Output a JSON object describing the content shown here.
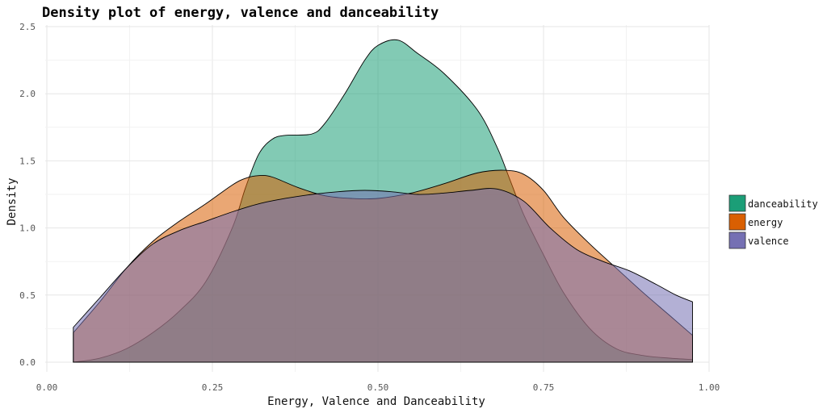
{
  "chart_data": {
    "type": "area",
    "title": "Density plot of energy, valence and danceability",
    "xlabel": "Energy, Valence and Danceability",
    "ylabel": "Density",
    "xlim": [
      0.0,
      1.0
    ],
    "ylim": [
      0.0,
      2.5
    ],
    "x_ticks": [
      "0.00",
      "0.25",
      "0.50",
      "0.75",
      "1.00"
    ],
    "y_ticks": [
      "0.0",
      "0.5",
      "1.0",
      "1.5",
      "2.0",
      "2.5"
    ],
    "grid": true,
    "legend_position": "right",
    "alpha": 0.55,
    "series": [
      {
        "name": "danceability",
        "color": "#1b9e77",
        "x": [
          0.04,
          0.08,
          0.12,
          0.16,
          0.2,
          0.24,
          0.28,
          0.3,
          0.32,
          0.34,
          0.36,
          0.4,
          0.42,
          0.45,
          0.48,
          0.5,
          0.53,
          0.56,
          0.6,
          0.65,
          0.68,
          0.7,
          0.72,
          0.75,
          0.78,
          0.82,
          0.86,
          0.9,
          0.94,
          0.975
        ],
        "values": [
          0.0,
          0.03,
          0.1,
          0.22,
          0.38,
          0.6,
          1.0,
          1.3,
          1.55,
          1.66,
          1.69,
          1.7,
          1.78,
          2.0,
          2.25,
          2.36,
          2.4,
          2.3,
          2.15,
          1.88,
          1.6,
          1.35,
          1.1,
          0.8,
          0.52,
          0.25,
          0.1,
          0.05,
          0.03,
          0.02
        ]
      },
      {
        "name": "energy",
        "color": "#d95f02",
        "x": [
          0.04,
          0.08,
          0.12,
          0.16,
          0.2,
          0.24,
          0.28,
          0.3,
          0.32,
          0.34,
          0.38,
          0.42,
          0.46,
          0.5,
          0.55,
          0.6,
          0.65,
          0.69,
          0.72,
          0.75,
          0.78,
          0.82,
          0.86,
          0.9,
          0.94,
          0.975
        ],
        "values": [
          0.22,
          0.45,
          0.7,
          0.9,
          1.05,
          1.18,
          1.32,
          1.37,
          1.39,
          1.38,
          1.3,
          1.24,
          1.22,
          1.22,
          1.26,
          1.33,
          1.41,
          1.43,
          1.4,
          1.28,
          1.08,
          0.88,
          0.7,
          0.52,
          0.35,
          0.2
        ]
      },
      {
        "name": "valence",
        "color": "#7570b3",
        "x": [
          0.04,
          0.08,
          0.12,
          0.16,
          0.2,
          0.24,
          0.28,
          0.32,
          0.36,
          0.4,
          0.44,
          0.48,
          0.52,
          0.56,
          0.6,
          0.64,
          0.68,
          0.72,
          0.76,
          0.8,
          0.84,
          0.88,
          0.92,
          0.95,
          0.975
        ],
        "values": [
          0.26,
          0.48,
          0.7,
          0.88,
          0.98,
          1.05,
          1.12,
          1.18,
          1.22,
          1.25,
          1.27,
          1.28,
          1.27,
          1.25,
          1.26,
          1.28,
          1.29,
          1.2,
          1.0,
          0.84,
          0.75,
          0.68,
          0.58,
          0.5,
          0.45
        ]
      }
    ]
  }
}
